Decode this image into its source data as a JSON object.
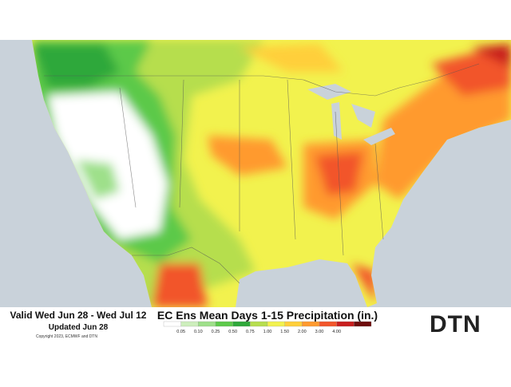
{
  "header": {
    "valid": "Valid Wed Jun 28 - Wed Jul 12",
    "updated": "Updated Jun 28",
    "copyright": "Copyright 2023, ECMWF and DTN"
  },
  "title": "EC Ens Mean Days 1-15 Precipitation (in.)",
  "legend": {
    "labels": [
      "0.05",
      "0.10",
      "0.25",
      "0.50",
      "0.75",
      "1.00",
      "1.50",
      "2.00",
      "3.00",
      "4.00"
    ],
    "colors": [
      "#ffffff",
      "#cdeebc",
      "#9ee08a",
      "#5cc94a",
      "#2ea83a",
      "#b6de4e",
      "#f2f24e",
      "#ffcf3a",
      "#ff9a2e",
      "#f2552a",
      "#c81e1e",
      "#6e0c0c"
    ]
  },
  "logo": "DTN"
}
